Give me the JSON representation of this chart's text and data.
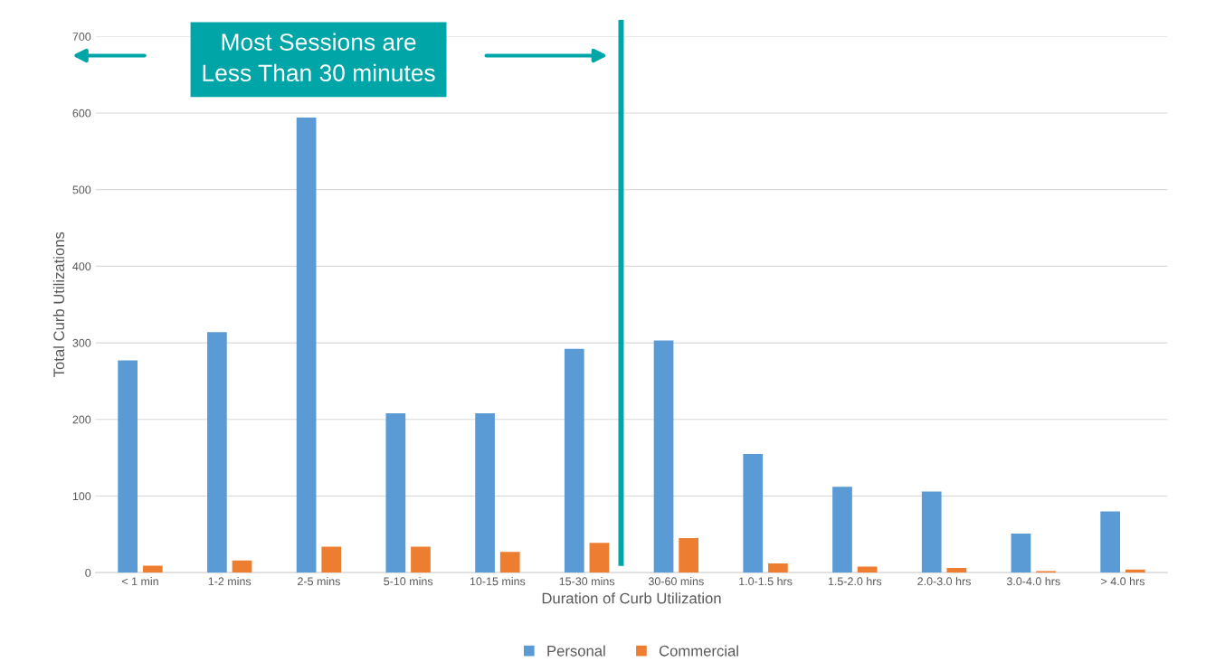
{
  "chart_data": {
    "type": "bar",
    "xlabel": "Duration of Curb Utilization",
    "ylabel": "Total Curb Utilizations",
    "categories": [
      "< 1 min",
      "1-2 mins",
      "2-5 mins",
      "5-10 mins",
      "10-15 mins",
      "15-30 mins",
      "30-60 mins",
      "1.0-1.5 hrs",
      "1.5-2.0 hrs",
      "2.0-3.0 hrs",
      "3.0-4.0 hrs",
      "> 4.0 hrs"
    ],
    "series": [
      {
        "name": "Personal",
        "color": "#5b9bd5",
        "values": [
          277,
          314,
          594,
          208,
          208,
          292,
          303,
          155,
          112,
          106,
          51,
          80
        ]
      },
      {
        "name": "Commercial",
        "color": "#ed7d31",
        "values": [
          9,
          16,
          34,
          34,
          27,
          39,
          45,
          12,
          8,
          6,
          2,
          4
        ]
      }
    ],
    "ylim": [
      0,
      700
    ],
    "yticks": [
      0,
      100,
      200,
      300,
      400,
      500,
      600,
      700
    ],
    "grid": "y",
    "legend": "bottom",
    "annotations": [
      "Most Sessions are\nLess Than 30 minutes"
    ]
  }
}
